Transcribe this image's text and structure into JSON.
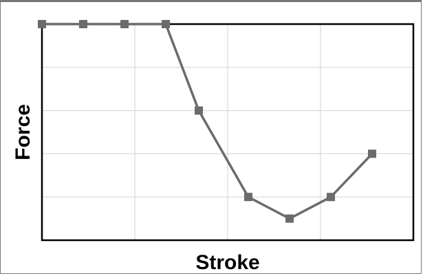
{
  "chart_data": {
    "type": "line",
    "title": "",
    "xlabel": "Stroke",
    "ylabel": "Force",
    "xlim": [
      0,
      9
    ],
    "ylim": [
      0,
      5
    ],
    "x_ticks": [],
    "y_ticks": [],
    "grid": true,
    "legend": "none",
    "series": [
      {
        "x": [
          0,
          1,
          2,
          3,
          3.8,
          5,
          6,
          7,
          8
        ],
        "y": [
          5,
          5,
          5,
          5,
          3,
          1,
          0.5,
          1,
          2
        ],
        "color": "#6b6b6b",
        "marker": "square"
      }
    ]
  }
}
